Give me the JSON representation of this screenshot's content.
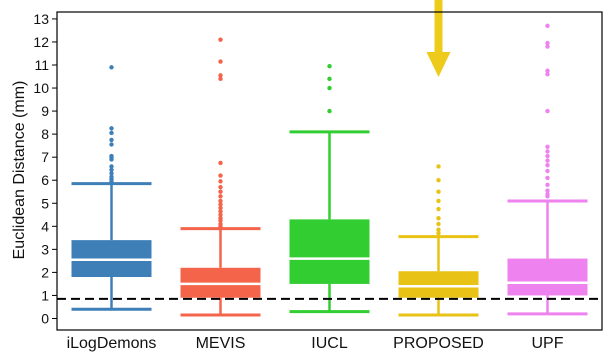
{
  "chart_data": {
    "type": "boxplot",
    "ylabel": "Euclidean Distance (mm)",
    "ylim": [
      -0.5,
      13.3
    ],
    "yticks": [
      0,
      1,
      2,
      3,
      4,
      5,
      6,
      7,
      8,
      9,
      10,
      11,
      12,
      13
    ],
    "categories": [
      "iLogDemons",
      "MEVIS",
      "IUCL",
      "PROPOSED",
      "UPF"
    ],
    "reference_line": {
      "y": 0.85,
      "style": "dashed"
    },
    "highlight_arrow": {
      "category": "PROPOSED",
      "color": "#eecb1a"
    },
    "series": [
      {
        "category": "iLogDemons",
        "color": "#3f7fb8",
        "whisker_low": 0.4,
        "q1": 1.8,
        "median": 2.55,
        "q3": 3.4,
        "whisker_high": 5.85,
        "outliers": [
          5.95,
          6.05,
          6.15,
          6.3,
          6.45,
          6.6,
          6.9,
          7.0,
          7.05,
          7.55,
          7.75,
          8.05,
          8.25,
          10.9
        ]
      },
      {
        "category": "MEVIS",
        "color": "#f4644a",
        "whisker_low": 0.15,
        "q1": 0.9,
        "median": 1.5,
        "q3": 2.2,
        "whisker_high": 3.9,
        "outliers": [
          4.0,
          4.1,
          4.25,
          4.35,
          4.5,
          4.65,
          4.8,
          4.95,
          5.1,
          5.3,
          5.5,
          5.7,
          5.95,
          6.2,
          6.75,
          10.4,
          10.55,
          11.15,
          12.1
        ]
      },
      {
        "category": "IUCL",
        "color": "#31cd31",
        "whisker_low": 0.3,
        "q1": 1.5,
        "median": 2.6,
        "q3": 4.3,
        "whisker_high": 8.1,
        "outliers": [
          9.0,
          10.0,
          10.4,
          10.95
        ]
      },
      {
        "category": "PROPOSED",
        "color": "#e8c214",
        "whisker_low": 0.15,
        "q1": 0.9,
        "median": 1.4,
        "q3": 2.05,
        "whisker_high": 3.55,
        "outliers": [
          3.7,
          3.85,
          4.1,
          4.35,
          4.75,
          5.1,
          5.5,
          6.0,
          6.6
        ]
      },
      {
        "category": "UPF",
        "color": "#ee82ee",
        "whisker_low": 0.2,
        "q1": 1.0,
        "median": 1.55,
        "q3": 2.6,
        "whisker_high": 5.1,
        "outliers": [
          5.3,
          5.4,
          5.55,
          5.8,
          6.1,
          6.4,
          6.65,
          6.85,
          7.05,
          7.25,
          7.45,
          9.0,
          10.6,
          10.75,
          11.8,
          11.95,
          12.7
        ]
      }
    ]
  }
}
